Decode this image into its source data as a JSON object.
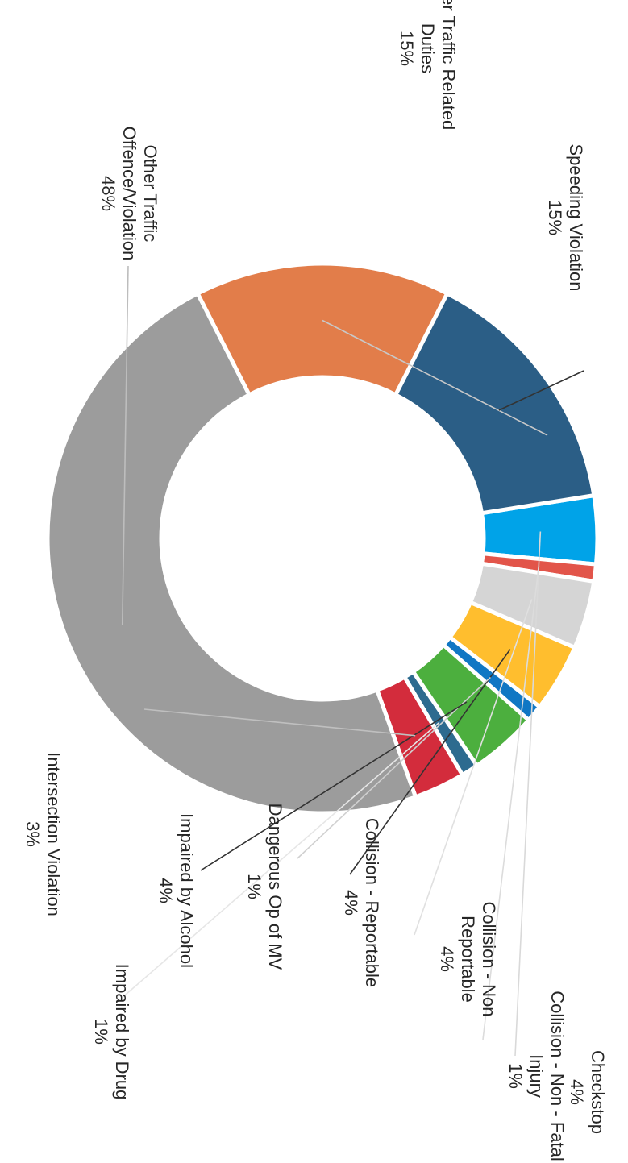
{
  "chart_data": {
    "type": "pie",
    "donut": true,
    "title": "",
    "series": [
      {
        "label": "Checkstop",
        "value": 4,
        "value_label": "4%",
        "color": "#00a3e8"
      },
      {
        "label": "Collision - Non - Fatal Injury",
        "value": 1,
        "value_label": "1%",
        "color": "#e2554a"
      },
      {
        "label": "Collision - Non Reportable",
        "value": 4,
        "value_label": "4%",
        "color": "#d5d5d5"
      },
      {
        "label": "Collision - Reportable",
        "value": 4,
        "value_label": "4%",
        "color": "#ffbe2e"
      },
      {
        "label": "Dangerous Op of MV",
        "value": 1,
        "value_label": "1%",
        "color": "#1077c4"
      },
      {
        "label": "Impaired by Alcohol",
        "value": 4,
        "value_label": "4%",
        "color": "#4caf3e"
      },
      {
        "label": "Impaired by Drug",
        "value": 1,
        "value_label": "1%",
        "color": "#2d6b8f"
      },
      {
        "label": "Intersection Violation",
        "value": 3,
        "value_label": "3%",
        "color": "#d32c3c"
      },
      {
        "label": "Other Traffic Offence/Violation",
        "value": 48,
        "value_label": "48%",
        "color": "#9c9c9c"
      },
      {
        "label": "Other Traffic Related Duties",
        "value": 15,
        "value_label": "15%",
        "color": "#e27d4a"
      },
      {
        "label": "Speeding Violation",
        "value": 15,
        "value_label": "15%",
        "color": "#2b5e86"
      }
    ]
  }
}
